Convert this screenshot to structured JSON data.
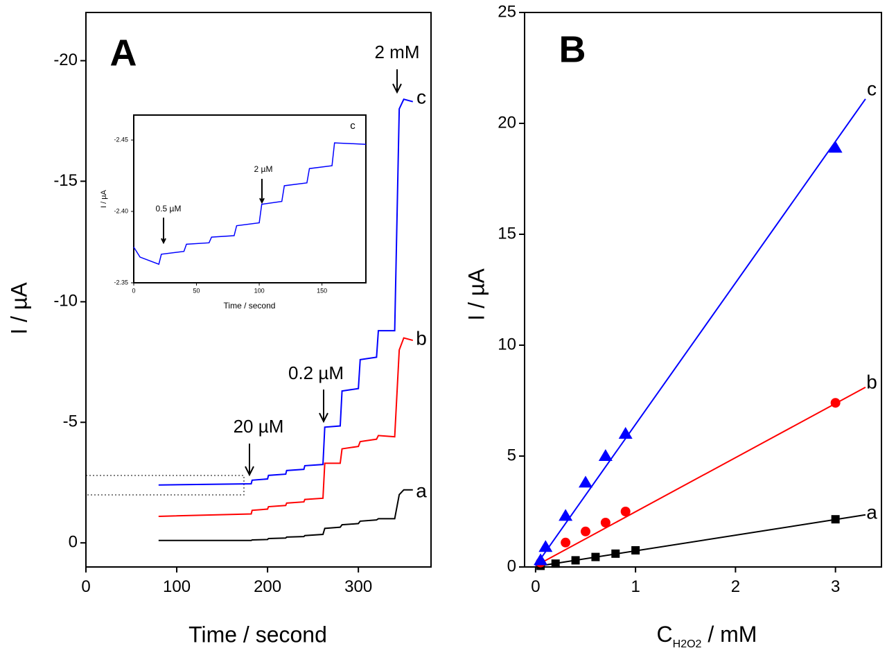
{
  "chart_data": [
    {
      "type": "line",
      "panel_label": "A",
      "x_label": "Time / second",
      "y_label": "I / µA",
      "xlim": [
        0,
        380
      ],
      "ylim": [
        1,
        -22
      ],
      "xticks": [
        0,
        100,
        200,
        300
      ],
      "yticks": [
        0,
        -5,
        -10,
        -15,
        -20
      ],
      "x": [
        80,
        182,
        183,
        200,
        201,
        220,
        221,
        240,
        241,
        261,
        263,
        280,
        282,
        300,
        302,
        320,
        322,
        340,
        345,
        350,
        360
      ],
      "series": [
        {
          "name": "a",
          "color": "#000000",
          "values": [
            -0.1,
            -0.1,
            -0.12,
            -0.14,
            -0.18,
            -0.2,
            -0.24,
            -0.26,
            -0.3,
            -0.35,
            -0.6,
            -0.65,
            -0.75,
            -0.8,
            -0.9,
            -0.95,
            -1.0,
            -1.0,
            -2.0,
            -2.2,
            -2.2
          ]
        },
        {
          "name": "b",
          "color": "#ff0000",
          "values": [
            -1.1,
            -1.2,
            -1.35,
            -1.4,
            -1.5,
            -1.55,
            -1.65,
            -1.7,
            -1.8,
            -1.85,
            -3.3,
            -3.3,
            -3.9,
            -4.0,
            -4.2,
            -4.3,
            -4.45,
            -4.4,
            -8.0,
            -8.5,
            -8.4
          ]
        },
        {
          "name": "c",
          "color": "#0000ff",
          "values": [
            -2.4,
            -2.45,
            -2.6,
            -2.65,
            -2.8,
            -2.85,
            -3.0,
            -3.05,
            -3.2,
            -3.25,
            -4.8,
            -4.85,
            -6.3,
            -6.4,
            -7.6,
            -7.7,
            -8.8,
            -8.8,
            -18.0,
            -18.4,
            -18.3
          ]
        }
      ],
      "annotations": [
        "20 µM",
        "0.2 µM",
        "2 mM"
      ]
    },
    {
      "type": "line",
      "x_label": "Time / second",
      "y_label": "I / µA",
      "xlim": [
        0,
        185
      ],
      "ylim": [
        -2.35,
        -2.4675
      ],
      "xticks": [
        0,
        50,
        100,
        150
      ],
      "yticks": [
        -2.35,
        {
          "value": -2.4,
          "label": "-2.40"
        },
        -2.45
      ],
      "x": [
        0,
        5,
        20,
        22,
        40,
        42,
        60,
        62,
        80,
        82,
        100,
        102,
        118,
        120,
        138,
        140,
        158,
        160,
        185
      ],
      "series": [
        {
          "name": "c",
          "color": "#0000ff",
          "values": [
            -2.375,
            -2.368,
            -2.363,
            -2.37,
            -2.372,
            -2.377,
            -2.378,
            -2.382,
            -2.383,
            -2.39,
            -2.392,
            -2.405,
            -2.407,
            -2.418,
            -2.42,
            -2.43,
            -2.432,
            -2.448,
            -2.447
          ]
        }
      ],
      "annotations": [
        "0.5 µM",
        "2 µM"
      ]
    },
    {
      "type": "scatter",
      "panel_label": "B",
      "x_label": [
        "C",
        "H2O2",
        " / mM"
      ],
      "y_label": "I / µA",
      "xlim": [
        -0.11,
        3.46
      ],
      "ylim": [
        0,
        25
      ],
      "xticks": [
        0,
        1,
        2,
        3
      ],
      "yticks": [
        0,
        5,
        10,
        15,
        20,
        25
      ],
      "series": [
        {
          "name": "a",
          "color": "#000000",
          "marker": "square",
          "x": [
            0.05,
            0.2,
            0.4,
            0.6,
            0.8,
            1.0,
            3.0
          ],
          "values": [
            0.05,
            0.15,
            0.3,
            0.45,
            0.6,
            0.75,
            2.15
          ],
          "fit_x": [
            0,
            3.3
          ],
          "fit_values": [
            0.02,
            2.35
          ]
        },
        {
          "name": "b",
          "color": "#ff0000",
          "marker": "circle",
          "x": [
            0.05,
            0.3,
            0.5,
            0.7,
            0.9,
            3.0
          ],
          "values": [
            0.2,
            1.1,
            1.6,
            2.0,
            2.5,
            7.4
          ],
          "fit_x": [
            0,
            3.3
          ],
          "fit_values": [
            0.05,
            8.1
          ]
        },
        {
          "name": "c",
          "color": "#0000ff",
          "marker": "triangle",
          "x": [
            0.05,
            0.1,
            0.3,
            0.5,
            0.7,
            0.9,
            3.0
          ],
          "values": [
            0.3,
            0.9,
            2.3,
            3.8,
            5.0,
            6.0,
            18.9
          ],
          "fit_x": [
            0,
            3.3
          ],
          "fit_values": [
            0.05,
            21.1
          ]
        }
      ]
    }
  ]
}
